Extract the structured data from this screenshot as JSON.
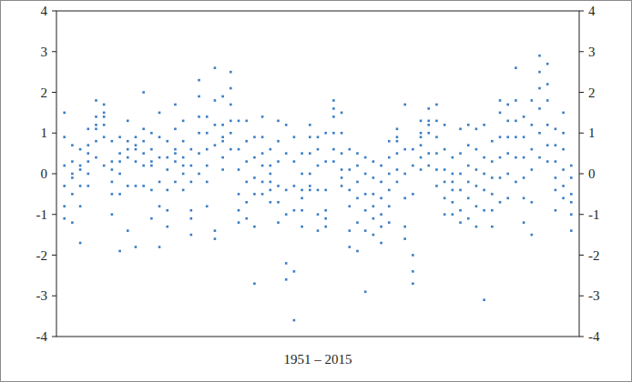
{
  "chart_data": {
    "type": "scatter",
    "x_label": "1951 – 2015",
    "color": "#3b7dc4",
    "marker": "square",
    "tick_labels": "y",
    "grid": false,
    "xlim": [
      1950,
      2016
    ],
    "ylim": [
      -4,
      4
    ],
    "yticks": [
      -4,
      -3,
      -2,
      -1,
      0,
      1,
      2,
      3,
      4
    ],
    "x": [
      1951,
      1951,
      1951,
      1951,
      1951,
      1951,
      1952,
      1952,
      1952,
      1952,
      1952,
      1952,
      1953,
      1953,
      1953,
      1953,
      1953,
      1953,
      1954,
      1954,
      1954,
      1954,
      1954,
      1954,
      1955,
      1955,
      1955,
      1955,
      1955,
      1955,
      1956,
      1956,
      1956,
      1956,
      1956,
      1956,
      1957,
      1957,
      1957,
      1957,
      1957,
      1957,
      1958,
      1958,
      1958,
      1958,
      1958,
      1958,
      1959,
      1959,
      1959,
      1959,
      1959,
      1959,
      1960,
      1960,
      1960,
      1960,
      1960,
      1960,
      1961,
      1961,
      1961,
      1961,
      1961,
      1961,
      1962,
      1962,
      1962,
      1962,
      1962,
      1962,
      1963,
      1963,
      1963,
      1963,
      1963,
      1963,
      1964,
      1964,
      1964,
      1964,
      1964,
      1964,
      1965,
      1965,
      1965,
      1965,
      1965,
      1965,
      1966,
      1966,
      1966,
      1966,
      1966,
      1966,
      1967,
      1967,
      1967,
      1967,
      1967,
      1967,
      1968,
      1968,
      1968,
      1968,
      1968,
      1968,
      1969,
      1969,
      1969,
      1969,
      1969,
      1969,
      1970,
      1970,
      1970,
      1970,
      1970,
      1970,
      1971,
      1971,
      1971,
      1971,
      1971,
      1971,
      1972,
      1972,
      1972,
      1972,
      1972,
      1972,
      1973,
      1973,
      1973,
      1973,
      1973,
      1973,
      1974,
      1974,
      1974,
      1974,
      1974,
      1974,
      1975,
      1975,
      1975,
      1975,
      1975,
      1975,
      1976,
      1976,
      1976,
      1976,
      1976,
      1976,
      1977,
      1977,
      1977,
      1977,
      1977,
      1977,
      1978,
      1978,
      1978,
      1978,
      1978,
      1978,
      1979,
      1979,
      1979,
      1979,
      1979,
      1979,
      1980,
      1980,
      1980,
      1980,
      1980,
      1980,
      1981,
      1981,
      1981,
      1981,
      1981,
      1981,
      1982,
      1982,
      1982,
      1982,
      1982,
      1982,
      1983,
      1983,
      1983,
      1983,
      1983,
      1983,
      1984,
      1984,
      1984,
      1984,
      1984,
      1984,
      1985,
      1985,
      1985,
      1985,
      1985,
      1985,
      1986,
      1986,
      1986,
      1986,
      1986,
      1986,
      1987,
      1987,
      1987,
      1987,
      1987,
      1987,
      1988,
      1988,
      1988,
      1988,
      1988,
      1988,
      1989,
      1989,
      1989,
      1989,
      1989,
      1989,
      1990,
      1990,
      1990,
      1990,
      1990,
      1990,
      1991,
      1991,
      1991,
      1991,
      1991,
      1991,
      1992,
      1992,
      1992,
      1992,
      1992,
      1992,
      1993,
      1993,
      1993,
      1993,
      1993,
      1993,
      1994,
      1994,
      1994,
      1994,
      1994,
      1994,
      1995,
      1995,
      1995,
      1995,
      1995,
      1995,
      1996,
      1996,
      1996,
      1996,
      1996,
      1996,
      1997,
      1997,
      1997,
      1997,
      1997,
      1997,
      1998,
      1998,
      1998,
      1998,
      1998,
      1998,
      1999,
      1999,
      1999,
      1999,
      1999,
      1999,
      2000,
      2000,
      2000,
      2000,
      2000,
      2000,
      2001,
      2001,
      2001,
      2001,
      2001,
      2001,
      2002,
      2002,
      2002,
      2002,
      2002,
      2002,
      2003,
      2003,
      2003,
      2003,
      2003,
      2003,
      2004,
      2004,
      2004,
      2004,
      2004,
      2004,
      2005,
      2005,
      2005,
      2005,
      2005,
      2005,
      2006,
      2006,
      2006,
      2006,
      2006,
      2006,
      2007,
      2007,
      2007,
      2007,
      2007,
      2007,
      2008,
      2008,
      2008,
      2008,
      2008,
      2008,
      2009,
      2009,
      2009,
      2009,
      2009,
      2009,
      2010,
      2010,
      2010,
      2010,
      2010,
      2010,
      2011,
      2011,
      2011,
      2011,
      2011,
      2011,
      2012,
      2012,
      2012,
      2012,
      2012,
      2012,
      2013,
      2013,
      2013,
      2013,
      2013,
      2013,
      2014,
      2014,
      2014,
      2014,
      2014,
      2014,
      2015,
      2015,
      2015,
      2015,
      2015,
      2015
    ],
    "values": [
      1.5,
      0.9,
      0.2,
      -0.3,
      -0.8,
      -1.1,
      0.7,
      0.3,
      -0.1,
      -0.5,
      -1.2,
      0.0,
      0.6,
      0.2,
      -0.3,
      -0.8,
      -1.7,
      0.1,
      1.1,
      0.7,
      0.3,
      0.0,
      -0.3,
      0.5,
      1.8,
      1.4,
      1.1,
      0.8,
      0.4,
      1.2,
      1.7,
      1.5,
      1.2,
      0.9,
      0.2,
      1.4,
      0.8,
      0.3,
      -0.2,
      -0.5,
      -1.0,
      0.1,
      0.9,
      0.5,
      0.0,
      -0.5,
      -1.9,
      0.3,
      1.3,
      0.8,
      0.4,
      -0.3,
      -1.4,
      0.6,
      0.9,
      0.6,
      0.3,
      -0.3,
      -1.8,
      0.7,
      2.0,
      1.1,
      0.8,
      0.5,
      0.2,
      -0.3,
      1.0,
      0.6,
      0.2,
      -0.4,
      -1.1,
      0.3,
      1.5,
      0.9,
      0.4,
      -0.2,
      -0.8,
      -1.8,
      0.8,
      0.4,
      0.1,
      -0.4,
      -1.3,
      -0.9,
      1.7,
      1.1,
      0.6,
      0.3,
      -0.2,
      0.5,
      1.3,
      0.8,
      0.4,
      0.0,
      -0.4,
      0.2,
      0.6,
      0.2,
      -0.2,
      -0.9,
      -1.5,
      -1.1,
      2.3,
      1.9,
      1.4,
      1.0,
      0.5,
      0.0,
      1.4,
      1.0,
      0.6,
      0.2,
      -0.2,
      -0.8,
      2.6,
      1.8,
      1.2,
      0.7,
      -1.4,
      -1.6,
      1.9,
      1.2,
      0.8,
      0.4,
      0.1,
      0.9,
      2.5,
      2.1,
      1.7,
      1.3,
      1.0,
      0.6,
      1.3,
      0.6,
      0.1,
      -0.5,
      -0.9,
      -1.2,
      1.3,
      0.8,
      0.3,
      -0.2,
      -0.7,
      -1.1,
      0.9,
      0.4,
      -0.1,
      -0.5,
      -1.3,
      -2.7,
      1.4,
      0.9,
      0.5,
      0.2,
      -0.2,
      -0.5,
      0.6,
      0.2,
      -0.2,
      -0.4,
      -0.7,
      0.0,
      1.3,
      0.8,
      0.3,
      -0.3,
      -0.7,
      -1.2,
      1.2,
      0.5,
      -0.4,
      -1.0,
      -2.2,
      -2.6,
      0.9,
      0.3,
      -0.3,
      -0.9,
      -2.4,
      -3.6,
      0.5,
      0.0,
      -0.4,
      -0.9,
      -1.3,
      -0.6,
      1.2,
      0.9,
      0.5,
      0.0,
      -0.4,
      -0.3,
      0.9,
      0.6,
      0.2,
      -0.4,
      -1.0,
      -1.4,
      1.0,
      0.3,
      -0.4,
      -0.9,
      -1.3,
      -1.1,
      1.8,
      1.4,
      1.0,
      0.6,
      0.3,
      1.6,
      1.5,
      1.0,
      0.5,
      0.1,
      -0.3,
      -0.1,
      0.6,
      0.1,
      -0.4,
      -0.8,
      -1.8,
      -1.4,
      0.5,
      0.2,
      -0.2,
      -0.6,
      -1.2,
      -1.9,
      0.4,
      0.0,
      -0.5,
      -0.9,
      -1.4,
      -2.9,
      0.3,
      -0.1,
      -0.5,
      -0.8,
      -1.1,
      -1.5,
      0.2,
      -0.2,
      -0.6,
      -1.0,
      -1.7,
      -1.3,
      0.8,
      0.4,
      0.0,
      -0.4,
      -0.8,
      -1.2,
      1.1,
      0.8,
      0.5,
      0.1,
      -0.2,
      0.9,
      1.7,
      0.6,
      0.0,
      -0.6,
      -1.3,
      -1.6,
      0.6,
      0.2,
      -0.5,
      -2.0,
      -2.4,
      -2.7,
      1.3,
      1.0,
      0.7,
      0.4,
      0.1,
      0.9,
      1.6,
      1.3,
      1.0,
      0.5,
      0.2,
      1.2,
      1.7,
      1.3,
      0.9,
      0.5,
      0.1,
      -0.3,
      1.2,
      0.6,
      0.1,
      -0.2,
      -0.6,
      -1.0,
      0.4,
      0.0,
      -0.4,
      -0.7,
      -1.0,
      -0.2,
      1.1,
      0.5,
      0.0,
      -0.4,
      -0.9,
      -1.2,
      1.2,
      0.7,
      0.2,
      -0.2,
      -0.6,
      -1.1,
      1.1,
      0.6,
      0.1,
      -0.3,
      -0.8,
      -1.3,
      1.2,
      0.4,
      0.0,
      -0.4,
      -0.9,
      -3.1,
      0.8,
      0.3,
      -0.1,
      -0.5,
      -0.9,
      -1.3,
      1.8,
      1.5,
      0.9,
      0.4,
      -0.1,
      -0.7,
      1.7,
      1.3,
      0.9,
      0.5,
      0.0,
      -0.6,
      2.6,
      1.8,
      1.3,
      0.9,
      0.4,
      -0.2,
      1.4,
      0.9,
      0.4,
      -0.1,
      -0.6,
      -1.2,
      1.8,
      1.2,
      0.6,
      0.1,
      -0.7,
      -1.5,
      2.9,
      2.5,
      2.1,
      1.6,
      1.0,
      0.4,
      2.7,
      2.2,
      1.8,
      1.2,
      0.7,
      0.3,
      1.1,
      0.7,
      0.3,
      -0.1,
      -0.4,
      -0.9,
      1.5,
      1.0,
      0.6,
      0.1,
      -0.3,
      -0.6,
      0.2,
      -0.1,
      -0.5,
      -0.7,
      -1.0,
      -1.4
    ]
  }
}
